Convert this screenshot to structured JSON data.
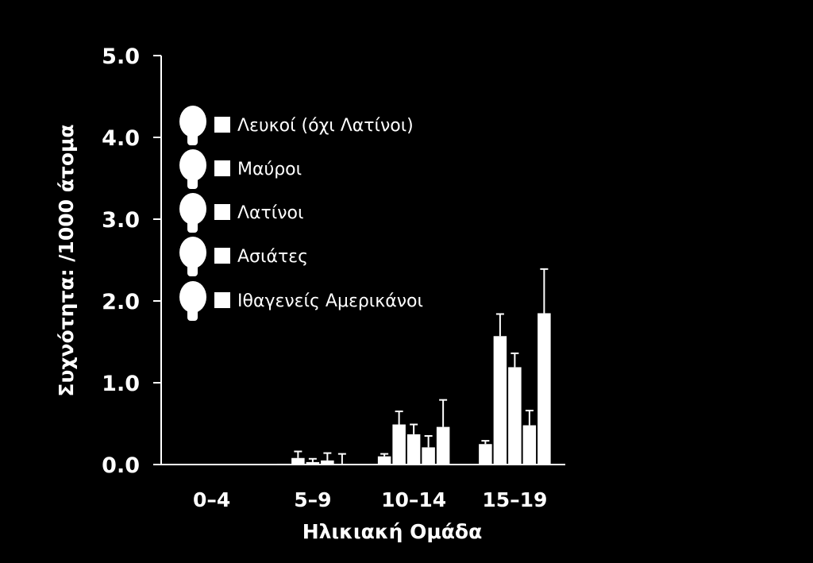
{
  "chart_data": {
    "type": "bar",
    "ylabel": "Συχνότητα: /1000 άτομα",
    "xlabel": "Ηλικιακή Ομάδα",
    "ylim": [
      0,
      5
    ],
    "yticks": [
      "0.0",
      "1.0",
      "2.0",
      "3.0",
      "4.0",
      "5.0"
    ],
    "categories": [
      "0–4",
      "5–9",
      "10–14",
      "15–19"
    ],
    "error_bars": true,
    "legend": {
      "placement": "top-left",
      "marker": "head-silhouette + square"
    },
    "series": [
      {
        "name": "Λευκοί (όχι Λατίνοι)",
        "values": [
          0,
          0.01,
          0.1,
          0.25
        ],
        "err": [
          0,
          0,
          0.03,
          0.04
        ]
      },
      {
        "name": "Μαύροι",
        "values": [
          0,
          0.08,
          0.49,
          1.57
        ],
        "err": [
          0,
          0.08,
          0.16,
          0.27
        ]
      },
      {
        "name": "Λατίνοι",
        "values": [
          0,
          0.03,
          0.37,
          1.19
        ],
        "err": [
          0,
          0.04,
          0.12,
          0.17
        ]
      },
      {
        "name": "Ασιάτες",
        "values": [
          0,
          0.05,
          0.21,
          0.48
        ],
        "err": [
          0,
          0.09,
          0.14,
          0.18
        ]
      },
      {
        "name": "Ιθαγενείς Αμερικάνοι",
        "values": [
          0,
          0,
          0.46,
          1.85
        ],
        "err": [
          0,
          0.13,
          0.33,
          0.54
        ]
      }
    ]
  }
}
